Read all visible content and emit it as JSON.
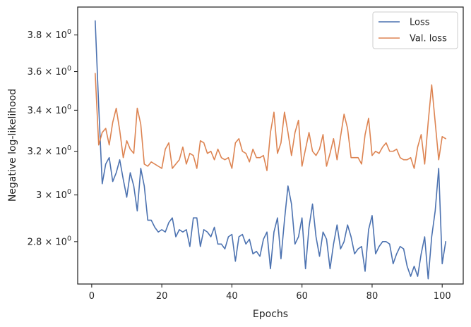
{
  "chart_data": {
    "type": "line",
    "xlabel": "Epochs",
    "ylabel": "Negative log-likelihood",
    "xlim": [
      -4,
      106
    ],
    "ylim": [
      2.63,
      3.96
    ],
    "yscale": "log",
    "grid": false,
    "legend_position": "top-right",
    "x_ticks": [
      0,
      20,
      40,
      60,
      80,
      100
    ],
    "x_tick_labels": [
      "0",
      "20",
      "40",
      "60",
      "80",
      "100"
    ],
    "y_ticks": [
      2.8,
      3.0,
      3.2,
      3.4,
      3.6,
      3.8
    ],
    "y_tick_labels": [
      {
        "mant": "2.8",
        "base": "10",
        "exp": "0"
      },
      {
        "mant": "3",
        "base": "10",
        "exp": "0"
      },
      {
        "mant": "3.2",
        "base": "10",
        "exp": "0"
      },
      {
        "mant": "3.4",
        "base": "10",
        "exp": "0"
      },
      {
        "mant": "3.6",
        "base": "10",
        "exp": "0"
      },
      {
        "mant": "3.8",
        "base": "10",
        "exp": "0"
      }
    ],
    "series": [
      {
        "name": "Loss",
        "color": "#4c72b0",
        "x": [
          1,
          2,
          3,
          4,
          5,
          6,
          7,
          8,
          9,
          10,
          11,
          12,
          13,
          14,
          15,
          16,
          17,
          18,
          19,
          20,
          21,
          22,
          23,
          24,
          25,
          26,
          27,
          28,
          29,
          30,
          31,
          32,
          33,
          34,
          35,
          36,
          37,
          38,
          39,
          40,
          41,
          42,
          43,
          44,
          45,
          46,
          47,
          48,
          49,
          50,
          51,
          52,
          53,
          54,
          55,
          56,
          57,
          58,
          59,
          60,
          61,
          62,
          63,
          64,
          65,
          66,
          67,
          68,
          69,
          70,
          71,
          72,
          73,
          74,
          75,
          76,
          77,
          78,
          79,
          80,
          81,
          82,
          83,
          84,
          85,
          86,
          87,
          88,
          89,
          90,
          91,
          92,
          93,
          94,
          95,
          96,
          97,
          98,
          99,
          100,
          101
        ],
        "values": [
          3.88,
          3.42,
          3.05,
          3.14,
          3.17,
          3.06,
          3.1,
          3.16,
          3.07,
          2.99,
          3.1,
          3.04,
          2.93,
          3.12,
          3.04,
          2.89,
          2.89,
          2.86,
          2.84,
          2.85,
          2.84,
          2.88,
          2.9,
          2.82,
          2.85,
          2.84,
          2.85,
          2.78,
          2.9,
          2.9,
          2.78,
          2.85,
          2.84,
          2.82,
          2.86,
          2.79,
          2.79,
          2.77,
          2.82,
          2.83,
          2.72,
          2.82,
          2.83,
          2.79,
          2.81,
          2.75,
          2.76,
          2.74,
          2.81,
          2.84,
          2.69,
          2.84,
          2.9,
          2.73,
          2.89,
          3.04,
          2.96,
          2.79,
          2.82,
          2.9,
          2.69,
          2.86,
          2.96,
          2.82,
          2.74,
          2.84,
          2.81,
          2.69,
          2.79,
          2.87,
          2.77,
          2.8,
          2.87,
          2.82,
          2.75,
          2.77,
          2.78,
          2.68,
          2.85,
          2.91,
          2.75,
          2.78,
          2.8,
          2.8,
          2.79,
          2.71,
          2.75,
          2.78,
          2.77,
          2.7,
          2.66,
          2.7,
          2.66,
          2.75,
          2.82,
          2.65,
          2.82,
          2.93,
          3.12,
          2.71,
          2.8
        ]
      },
      {
        "name": "Val. loss",
        "color": "#dd8452",
        "x": [
          1,
          2,
          3,
          4,
          5,
          6,
          7,
          8,
          9,
          10,
          11,
          12,
          13,
          14,
          15,
          16,
          17,
          18,
          19,
          20,
          21,
          22,
          23,
          24,
          25,
          26,
          27,
          28,
          29,
          30,
          31,
          32,
          33,
          34,
          35,
          36,
          37,
          38,
          39,
          40,
          41,
          42,
          43,
          44,
          45,
          46,
          47,
          48,
          49,
          50,
          51,
          52,
          53,
          54,
          55,
          56,
          57,
          58,
          59,
          60,
          61,
          62,
          63,
          64,
          65,
          66,
          67,
          68,
          69,
          70,
          71,
          72,
          73,
          74,
          75,
          76,
          77,
          78,
          79,
          80,
          81,
          82,
          83,
          84,
          85,
          86,
          87,
          88,
          89,
          90,
          91,
          92,
          93,
          94,
          95,
          96,
          97,
          98,
          99,
          100,
          101
        ],
        "values": [
          3.59,
          3.23,
          3.29,
          3.31,
          3.23,
          3.34,
          3.41,
          3.3,
          3.17,
          3.25,
          3.21,
          3.19,
          3.41,
          3.33,
          3.14,
          3.13,
          3.15,
          3.14,
          3.13,
          3.12,
          3.21,
          3.24,
          3.12,
          3.14,
          3.16,
          3.22,
          3.14,
          3.19,
          3.18,
          3.12,
          3.25,
          3.24,
          3.19,
          3.2,
          3.16,
          3.21,
          3.17,
          3.16,
          3.17,
          3.12,
          3.24,
          3.26,
          3.2,
          3.19,
          3.15,
          3.21,
          3.17,
          3.17,
          3.18,
          3.11,
          3.29,
          3.39,
          3.19,
          3.24,
          3.39,
          3.29,
          3.18,
          3.29,
          3.35,
          3.13,
          3.21,
          3.29,
          3.2,
          3.18,
          3.21,
          3.28,
          3.13,
          3.19,
          3.26,
          3.16,
          3.27,
          3.38,
          3.31,
          3.17,
          3.17,
          3.17,
          3.14,
          3.28,
          3.36,
          3.18,
          3.2,
          3.19,
          3.22,
          3.24,
          3.2,
          3.2,
          3.21,
          3.17,
          3.16,
          3.16,
          3.17,
          3.12,
          3.22,
          3.28,
          3.14,
          3.34,
          3.53,
          3.34,
          3.16,
          3.27,
          3.26
        ]
      }
    ]
  }
}
